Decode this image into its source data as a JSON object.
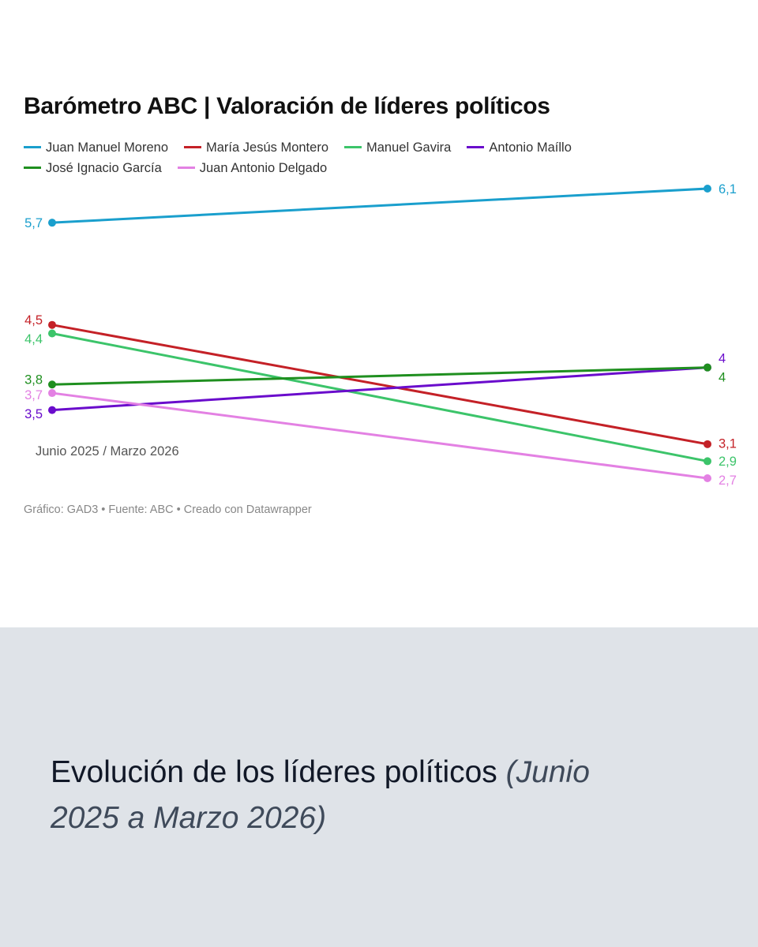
{
  "chart_data": {
    "type": "line",
    "title": "Barómetro ABC | Valoración de líderes políticos",
    "x": [
      "Junio 2025",
      "Marzo 2026"
    ],
    "x_axis_note": "Junio 2025 / Marzo 2026",
    "ylim": [
      2.5,
      6.3
    ],
    "grid": false,
    "legend_position": "top",
    "series": [
      {
        "name": "Juan Manuel Moreno",
        "values": [
          5.7,
          6.1
        ],
        "labels": [
          "5,7",
          "6,1"
        ],
        "color": "#1a9fcd"
      },
      {
        "name": "María Jesús Montero",
        "values": [
          4.5,
          3.1
        ],
        "labels": [
          "4,5",
          "3,1"
        ],
        "color": "#c42127"
      },
      {
        "name": "Manuel Gavira",
        "values": [
          4.4,
          2.9
        ],
        "labels": [
          "4,4",
          "2,9"
        ],
        "color": "#3cc46a"
      },
      {
        "name": "Antonio Maíllo",
        "values": [
          3.5,
          4.0
        ],
        "labels": [
          "3,5",
          "4"
        ],
        "color": "#6a0ccc"
      },
      {
        "name": "José Ignacio García",
        "values": [
          3.8,
          4.0
        ],
        "labels": [
          "3,8",
          "4"
        ],
        "color": "#1f8f1f"
      },
      {
        "name": "Juan Antonio Delgado",
        "values": [
          3.7,
          2.7
        ],
        "labels": [
          "3,7",
          "2,7"
        ],
        "color": "#e381e3"
      }
    ],
    "source_note": "Gráfico: GAD3 • Fuente: ABC • Creado con Datawrapper"
  },
  "caption": {
    "main": "Evolución de los líderes políticos",
    "italic": "(Junio 2025 a Marzo 2026)"
  }
}
